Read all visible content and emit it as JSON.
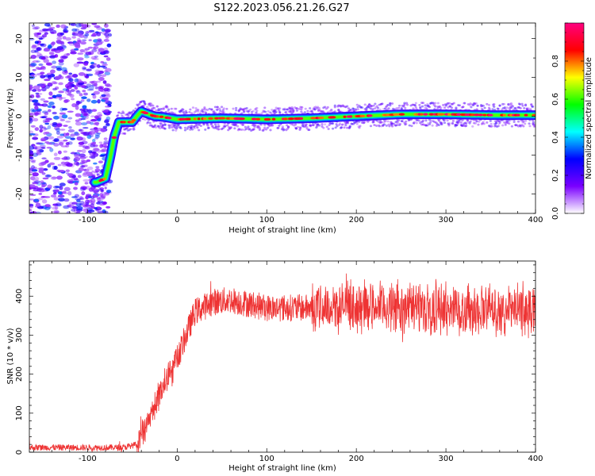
{
  "title": "S122.2023.056.21.26.G27",
  "chart_data": [
    {
      "type": "heatmap",
      "xlabel": "Height of straight line (km)",
      "ylabel": "Frequency (Hz)",
      "xlim": [
        -165,
        400
      ],
      "ylim": [
        -25,
        24
      ],
      "x_ticks": [
        -100,
        0,
        100,
        200,
        300,
        400
      ],
      "y_ticks": [
        -20,
        -10,
        0,
        10,
        20
      ],
      "trace": {
        "x": [
          -90,
          -80,
          -75,
          -70,
          -65,
          -60,
          -50,
          -45,
          -40,
          -35,
          -25,
          -15,
          0,
          50,
          100,
          150,
          200,
          250,
          300,
          350,
          400
        ],
        "y": [
          -17,
          -16,
          -11,
          -5,
          -1.5,
          -1.5,
          -1.5,
          0,
          1.3,
          0.8,
          0,
          -0.2,
          -0.8,
          -0.5,
          -0.8,
          -0.5,
          0,
          0.5,
          0.5,
          0.3,
          0.3
        ]
      },
      "colorbar": {
        "label": "Normalized spectral amplitude",
        "range": [
          0,
          1
        ],
        "ticks": [
          0.0,
          0.2,
          0.4,
          0.6,
          0.8
        ],
        "colors": [
          "#ffffff",
          "#7a00ff",
          "#0000ff",
          "#00ffff",
          "#00ff00",
          "#ffff00",
          "#ff0000",
          "#ff0080"
        ]
      },
      "grid": false
    },
    {
      "type": "line",
      "xlabel": "Height of straight line (km)",
      "ylabel": "SNR (10 * v/v)",
      "xlim": [
        -165,
        400
      ],
      "ylim": [
        0,
        490
      ],
      "x_ticks": [
        -100,
        0,
        100,
        200,
        300,
        400
      ],
      "y_ticks": [
        0,
        100,
        200,
        300,
        400
      ],
      "series_color": "#ee3333",
      "envelope": {
        "x": [
          -165,
          -60,
          -45,
          -40,
          -30,
          -20,
          -10,
          0,
          10,
          20,
          40,
          60,
          100,
          150,
          200,
          250,
          300,
          350,
          400
        ],
        "y": [
          12,
          12,
          20,
          35,
          90,
          150,
          200,
          240,
          300,
          360,
          385,
          390,
          370,
          370,
          375,
          372,
          368,
          365,
          365
        ]
      },
      "noise_amplitude": [
        8,
        20,
        30,
        35,
        60
      ],
      "grid": false
    }
  ]
}
